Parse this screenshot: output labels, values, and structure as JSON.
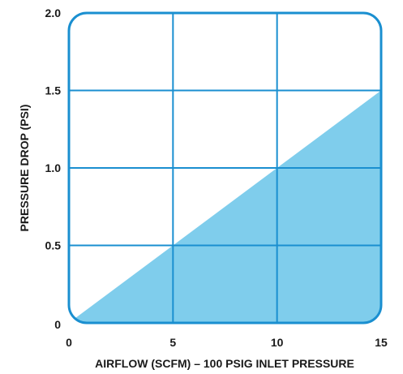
{
  "chart_data": {
    "type": "area",
    "title": "",
    "xlabel": "AIRFLOW (SCFM) – 100 PSIG INLET PRESSURE",
    "ylabel": "PRESSURE DROP (PSI)",
    "xlim": [
      0,
      15
    ],
    "ylim": [
      0,
      2.0
    ],
    "x_ticks": [
      0,
      5,
      10,
      15
    ],
    "x_tick_labels": [
      "0",
      "5",
      "10",
      "15"
    ],
    "y_ticks": [
      0,
      0.5,
      1.0,
      1.5,
      2.0
    ],
    "y_tick_labels": [
      "0",
      "0.5",
      "1.0",
      "1.5",
      "2.0"
    ],
    "grid": true,
    "series": [
      {
        "x": [
          0,
          5,
          10,
          15
        ],
        "y": [
          0,
          0.5,
          1.0,
          1.5
        ]
      }
    ],
    "colors": {
      "fill": "#7fcdec",
      "grid": "#1a8fd0",
      "frame": "#1a8fd0",
      "text": "#1a1a1a"
    }
  }
}
